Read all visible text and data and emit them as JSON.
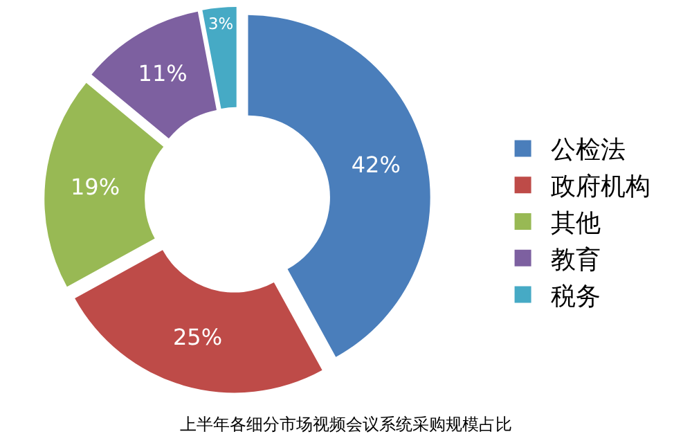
{
  "chart_data": {
    "type": "donut",
    "title": "上半年各细分市场视频会议系统采购规模占比",
    "categories": [
      "公检法",
      "政府机构",
      "其他",
      "教育",
      "税务"
    ],
    "values": [
      42,
      25,
      19,
      11,
      3
    ],
    "value_labels": [
      "42%",
      "25%",
      "19%",
      "11%",
      "3%"
    ],
    "colors": [
      "#4a7ebb",
      "#be4b48",
      "#98b954",
      "#7d60a0",
      "#46aac5"
    ],
    "legend": "right"
  }
}
